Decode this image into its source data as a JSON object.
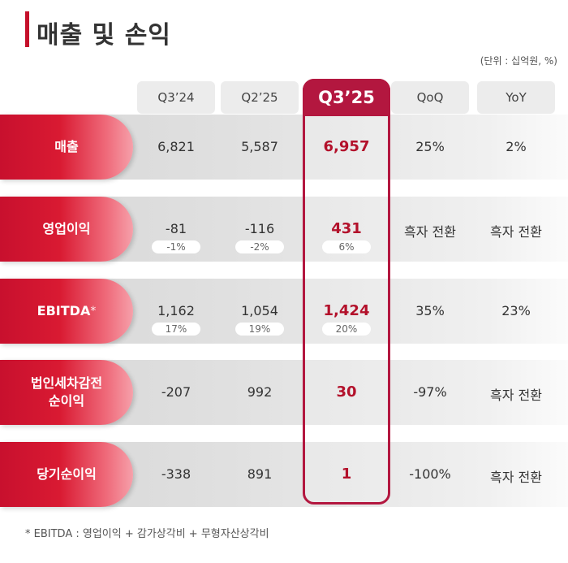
{
  "title": "매출 및 손익",
  "unit_note": "(단위 : 십억원, %)",
  "columns": [
    "Q3’24",
    "Q2’25",
    "Q3’25",
    "QoQ",
    "YoY"
  ],
  "highlight_column": "Q3’25",
  "colors": {
    "accent": "#b3173f",
    "label_red": "#c8102e",
    "value_red": "#b3112b"
  },
  "rows": [
    {
      "label": "매출",
      "marker": "",
      "values": [
        "6,821",
        "5,587",
        "6,957",
        "25%",
        "2%"
      ],
      "margins": []
    },
    {
      "label": "영업이익",
      "marker": "",
      "values": [
        "-81",
        "-116",
        "431",
        "흑자 전환",
        "흑자 전환"
      ],
      "margins": [
        "-1%",
        "-2%",
        "6%"
      ]
    },
    {
      "label": "EBITDA",
      "marker": "*",
      "values": [
        "1,162",
        "1,054",
        "1,424",
        "35%",
        "23%"
      ],
      "margins": [
        "17%",
        "19%",
        "20%"
      ]
    },
    {
      "label": "법인세차감전\n순이익",
      "marker": "",
      "values": [
        "-207",
        "992",
        "30",
        "-97%",
        "흑자 전환"
      ],
      "margins": []
    },
    {
      "label": "당기순이익",
      "marker": "",
      "values": [
        "-338",
        "891",
        "1",
        "-100%",
        "흑자 전환"
      ],
      "margins": []
    }
  ],
  "footnote": "* EBITDA : 영업이익 + 감가상각비 + 무형자산상각비"
}
